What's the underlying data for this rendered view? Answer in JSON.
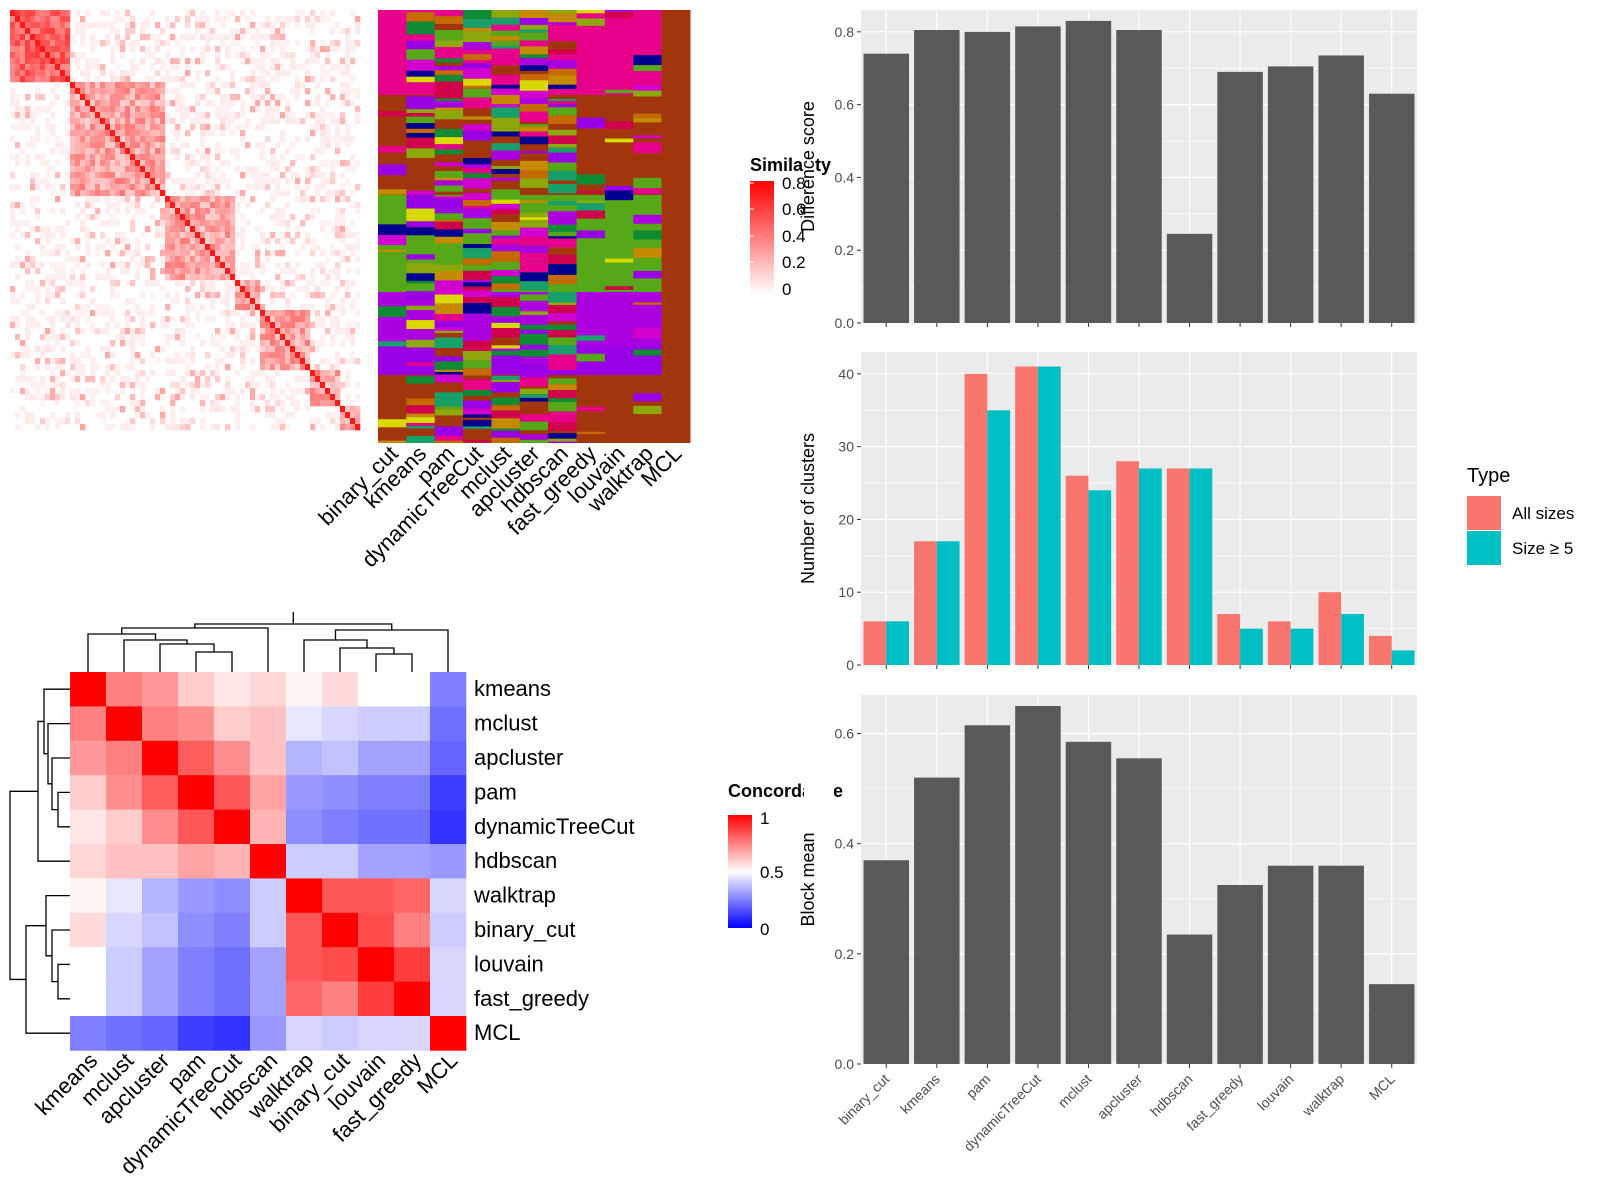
{
  "chart_data": [
    {
      "type": "heatmap",
      "legend": {
        "title": "Similarity",
        "ticks": [
          "0.8",
          "0.6",
          "0.4",
          "0.2",
          "0"
        ]
      }
    },
    {
      "type": "heatmap",
      "columns": [
        "binary_cut",
        "kmeans",
        "pam",
        "dynamicTreeCut",
        "mclust",
        "apcluster",
        "hdbscan",
        "fast_greedy",
        "louvain",
        "walktrap",
        "MCL"
      ]
    },
    {
      "type": "heatmap",
      "rows": [
        "kmeans",
        "mclust",
        "apcluster",
        "pam",
        "dynamicTreeCut",
        "hdbscan",
        "walktrap",
        "binary_cut",
        "louvain",
        "fast_greedy",
        "MCL"
      ],
      "columns": [
        "kmeans",
        "mclust",
        "apcluster",
        "pam",
        "dynamicTreeCut",
        "hdbscan",
        "walktrap",
        "binary_cut",
        "louvain",
        "fast_greedy",
        "MCL"
      ],
      "values": [
        [
          1.0,
          0.75,
          0.7,
          0.6,
          0.55,
          0.58,
          0.52,
          0.57,
          0.5,
          0.5,
          0.25
        ],
        [
          0.75,
          1.0,
          0.75,
          0.72,
          0.6,
          0.62,
          0.45,
          0.42,
          0.4,
          0.4,
          0.22
        ],
        [
          0.7,
          0.75,
          1.0,
          0.82,
          0.72,
          0.62,
          0.35,
          0.38,
          0.32,
          0.32,
          0.2
        ],
        [
          0.6,
          0.72,
          0.82,
          1.0,
          0.83,
          0.68,
          0.3,
          0.28,
          0.25,
          0.25,
          0.12
        ],
        [
          0.55,
          0.6,
          0.72,
          0.83,
          1.0,
          0.65,
          0.28,
          0.25,
          0.22,
          0.22,
          0.1
        ],
        [
          0.58,
          0.62,
          0.62,
          0.68,
          0.65,
          1.0,
          0.4,
          0.4,
          0.32,
          0.32,
          0.3
        ],
        [
          0.52,
          0.45,
          0.35,
          0.3,
          0.28,
          0.4,
          1.0,
          0.83,
          0.83,
          0.8,
          0.42
        ],
        [
          0.57,
          0.42,
          0.38,
          0.28,
          0.25,
          0.4,
          0.83,
          1.0,
          0.85,
          0.75,
          0.4
        ],
        [
          0.5,
          0.4,
          0.32,
          0.25,
          0.22,
          0.32,
          0.83,
          0.85,
          1.0,
          0.88,
          0.42
        ],
        [
          0.5,
          0.4,
          0.32,
          0.25,
          0.22,
          0.32,
          0.8,
          0.75,
          0.88,
          1.0,
          0.42
        ],
        [
          0.25,
          0.22,
          0.2,
          0.12,
          0.1,
          0.3,
          0.42,
          0.4,
          0.42,
          0.42,
          1.0
        ]
      ],
      "legend": {
        "title": "Concordance",
        "ticks": [
          "1",
          "0.5",
          "0"
        ]
      }
    },
    {
      "type": "bar",
      "categories": [
        "binary_cut",
        "kmeans",
        "pam",
        "dynamicTreeCut",
        "mclust",
        "apcluster",
        "hdbscan",
        "fast_greedy",
        "louvain",
        "walktrap",
        "MCL"
      ],
      "values": [
        0.74,
        0.805,
        0.8,
        0.815,
        0.83,
        0.805,
        0.245,
        0.69,
        0.705,
        0.735,
        0.63
      ],
      "ylabel": "Difference score",
      "ylim": [
        0,
        0.86
      ],
      "yticks": [
        "0.0",
        "0.2",
        "0.4",
        "0.6",
        "0.8"
      ]
    },
    {
      "type": "bar",
      "categories": [
        "binary_cut",
        "kmeans",
        "pam",
        "dynamicTreeCut",
        "mclust",
        "apcluster",
        "hdbscan",
        "fast_greedy",
        "louvain",
        "walktrap",
        "MCL"
      ],
      "series": [
        {
          "name": "All sizes",
          "values": [
            6,
            17,
            40,
            41,
            26,
            28,
            27,
            7,
            6,
            10,
            4
          ]
        },
        {
          "name": "Size ≥ 5",
          "values": [
            6,
            17,
            35,
            41,
            24,
            27,
            27,
            5,
            5,
            7,
            2
          ]
        }
      ],
      "ylabel": "Number of clusters",
      "ylim": [
        0,
        43
      ],
      "yticks": [
        "0",
        "10",
        "20",
        "30",
        "40"
      ],
      "legend": {
        "title": "Type",
        "position": "right"
      },
      "colors": [
        "#F8766D",
        "#00BFC4"
      ]
    },
    {
      "type": "bar",
      "categories": [
        "binary_cut",
        "kmeans",
        "pam",
        "dynamicTreeCut",
        "mclust",
        "apcluster",
        "hdbscan",
        "fast_greedy",
        "louvain",
        "walktrap",
        "MCL"
      ],
      "values": [
        0.37,
        0.52,
        0.615,
        0.65,
        0.585,
        0.555,
        0.235,
        0.325,
        0.36,
        0.36,
        0.145
      ],
      "ylabel": "Block mean",
      "ylim": [
        0,
        0.67
      ],
      "yticks": [
        "0.0",
        "0.2",
        "0.4",
        "0.6"
      ]
    }
  ]
}
